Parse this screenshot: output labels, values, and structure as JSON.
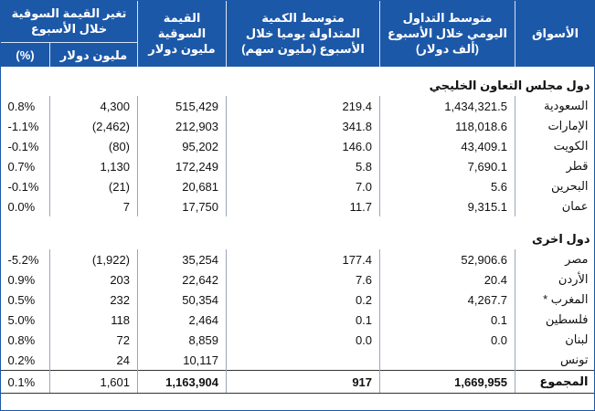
{
  "headers": {
    "market": "الأسواق",
    "avg_trade_1": "متوسط التداول",
    "avg_trade_2": "اليومي خلال الأسبوع",
    "avg_trade_3": "(ألف دولار)",
    "avg_volume_1": "متوسط الكمية",
    "avg_volume_2": "المتداولة يوميا خلال",
    "avg_volume_3": "الأسبوع (مليون سهم)",
    "market_cap_1": "القيمة السوقية",
    "market_cap_2": "مليون دولار",
    "weekly_change": "تغير القيمة السوقية خلال الأسبوع",
    "change_mn": "مليون دولار",
    "change_pct": "(%)"
  },
  "sections": [
    {
      "title": "دول مجلس التعاون الخليجي",
      "rows": [
        {
          "market": "السعودية",
          "trade": "1,434,321.5",
          "volume": "219.4",
          "cap": "515,429",
          "change_mn": "4,300",
          "change_pct": "0.8%"
        },
        {
          "market": "الإمارات",
          "trade": "118,018.6",
          "volume": "341.8",
          "cap": "212,903",
          "change_mn": "(2,462)",
          "change_pct": "-1.1%"
        },
        {
          "market": "الكويت",
          "trade": "43,409.1",
          "volume": "146.0",
          "cap": "95,202",
          "change_mn": "(80)",
          "change_pct": "-0.1%"
        },
        {
          "market": "قطر",
          "trade": "7,690.1",
          "volume": "5.8",
          "cap": "172,249",
          "change_mn": "1,130",
          "change_pct": "0.7%"
        },
        {
          "market": "البحرين",
          "trade": "5.6",
          "volume": "7.0",
          "cap": "20,681",
          "change_mn": "(21)",
          "change_pct": "-0.1%"
        },
        {
          "market": "عمان",
          "trade": "9,315.1",
          "volume": "11.7",
          "cap": "17,750",
          "change_mn": "7",
          "change_pct": "0.0%"
        }
      ]
    },
    {
      "title": "دول اخرى",
      "rows": [
        {
          "market": "مصر",
          "trade": "52,906.6",
          "volume": "177.4",
          "cap": "35,254",
          "change_mn": "(1,922)",
          "change_pct": "-5.2%"
        },
        {
          "market": "الأردن",
          "trade": "20.4",
          "volume": "7.6",
          "cap": "22,642",
          "change_mn": "203",
          "change_pct": "0.9%"
        },
        {
          "market": "المغرب *",
          "trade": "4,267.7",
          "volume": "0.2",
          "cap": "50,354",
          "change_mn": "232",
          "change_pct": "0.5%"
        },
        {
          "market": "فلسطين",
          "trade": "0.1",
          "volume": "0.1",
          "cap": "2,464",
          "change_mn": "118",
          "change_pct": "5.0%"
        },
        {
          "market": "لبنان",
          "trade": "0.0",
          "volume": "0.0",
          "cap": "8,859",
          "change_mn": "72",
          "change_pct": "0.8%"
        },
        {
          "market": "تونس",
          "trade": "",
          "volume": "",
          "cap": "10,117",
          "change_mn": "24",
          "change_pct": "0.2%"
        }
      ]
    }
  ],
  "total": {
    "market": "المجموع",
    "trade": "1,669,955",
    "volume": "917",
    "cap": "1,163,904",
    "change_mn": "1,601",
    "change_pct": "0.1%"
  },
  "colors": {
    "header_bg": "#1c58a8",
    "header_text": "#ffffff"
  }
}
